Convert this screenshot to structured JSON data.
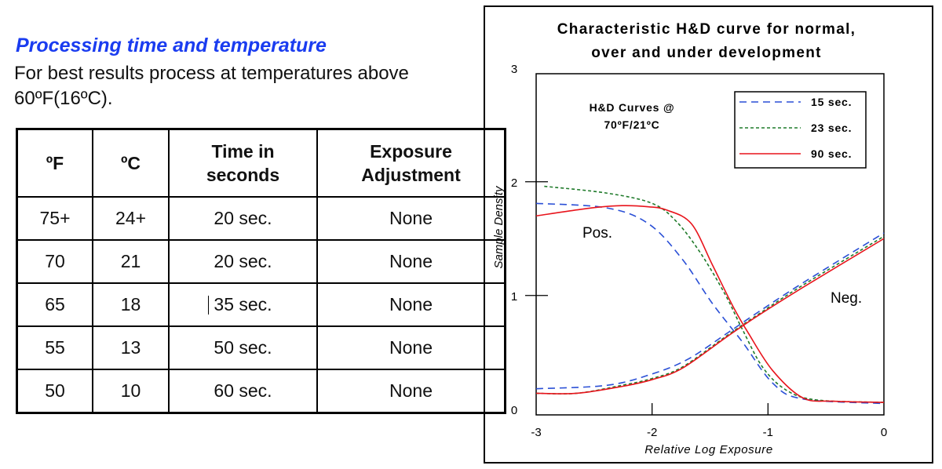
{
  "heading": "Processing time and temperature",
  "intro": "For best results process at temperatures above 60ºF(16ºC).",
  "table": {
    "headers": [
      "ºF",
      "ºC",
      "Time in seconds",
      "Exposure Adjustment"
    ],
    "rows": [
      [
        "75+",
        "24+",
        "20 sec.",
        "None"
      ],
      [
        "70",
        "21",
        "20 sec.",
        "None"
      ],
      [
        "65",
        "18",
        "35 sec.",
        "None"
      ],
      [
        "55",
        "13",
        "50 sec.",
        "None"
      ],
      [
        "50",
        "10",
        "60 sec.",
        "None"
      ]
    ]
  },
  "chart_data": {
    "type": "line",
    "title_lines": [
      "Characteristic H&D curve for normal,",
      "over and under development"
    ],
    "xlabel": "Relative Log Exposure",
    "ylabel": "Sample Density",
    "xlim": [
      -3,
      0
    ],
    "ylim": [
      -0.05,
      2.95
    ],
    "xticks": [
      "-3",
      "-2",
      "-1",
      "0"
    ],
    "yticks": [
      "0",
      "1",
      "2",
      "3"
    ],
    "annotation_lines": [
      "H&D Curves @",
      "70ºF/21ºC"
    ],
    "labels": {
      "pos": "Pos.",
      "neg": "Neg."
    },
    "legend_position": "top-right",
    "series": [
      {
        "name": "15 sec.",
        "color": "#2a4fd6",
        "dash": "dashed",
        "pos": [
          [
            -3,
            1.81
          ],
          [
            -2.39,
            1.77
          ],
          [
            -2.03,
            1.63
          ],
          [
            -1.74,
            1.32
          ],
          [
            -1.48,
            0.93
          ],
          [
            -1.22,
            0.59
          ],
          [
            -0.96,
            0.23
          ],
          [
            -0.7,
            0.09
          ],
          [
            0,
            0.05
          ]
        ],
        "neg": [
          [
            -3,
            0.18
          ],
          [
            -2.39,
            0.21
          ],
          [
            -2,
            0.31
          ],
          [
            -1.69,
            0.44
          ],
          [
            -1.35,
            0.67
          ],
          [
            -1.09,
            0.85
          ],
          [
            -0.7,
            1.11
          ],
          [
            0,
            1.55
          ]
        ]
      },
      {
        "name": "23 sec.",
        "color": "#1f7a2a",
        "dash": "dotted",
        "pos": [
          [
            -2.93,
            1.96
          ],
          [
            -2.39,
            1.9
          ],
          [
            -2,
            1.81
          ],
          [
            -1.79,
            1.65
          ],
          [
            -1.58,
            1.37
          ],
          [
            -1.37,
            1.01
          ],
          [
            -1.22,
            0.7
          ],
          [
            -1.04,
            0.36
          ],
          [
            -0.83,
            0.16
          ],
          [
            -0.57,
            0.08
          ],
          [
            0,
            0.06
          ]
        ],
        "neg": [
          [
            -3,
            0.14
          ],
          [
            -2.65,
            0.14
          ],
          [
            -2.26,
            0.21
          ],
          [
            -2,
            0.27
          ],
          [
            -1.74,
            0.37
          ],
          [
            -1.35,
            0.65
          ],
          [
            -1.09,
            0.83
          ],
          [
            -0.7,
            1.09
          ],
          [
            0,
            1.52
          ]
        ]
      },
      {
        "name": "90 sec.",
        "color": "#e8141c",
        "dash": "solid",
        "pos": [
          [
            -3,
            1.7
          ],
          [
            -2.52,
            1.77
          ],
          [
            -2.26,
            1.79
          ],
          [
            -2.03,
            1.78
          ],
          [
            -1.87,
            1.75
          ],
          [
            -1.66,
            1.63
          ],
          [
            -1.48,
            1.27
          ],
          [
            -1.3,
            0.9
          ],
          [
            -1.17,
            0.67
          ],
          [
            -0.96,
            0.34
          ],
          [
            -0.7,
            0.1
          ],
          [
            -0.44,
            0.07
          ],
          [
            0,
            0.06
          ]
        ],
        "neg": [
          [
            -3,
            0.14
          ],
          [
            -2.65,
            0.14
          ],
          [
            -2.26,
            0.2
          ],
          [
            -2,
            0.26
          ],
          [
            -1.74,
            0.36
          ],
          [
            -1.35,
            0.64
          ],
          [
            -1.09,
            0.82
          ],
          [
            -0.7,
            1.07
          ],
          [
            0,
            1.5
          ]
        ]
      }
    ]
  }
}
